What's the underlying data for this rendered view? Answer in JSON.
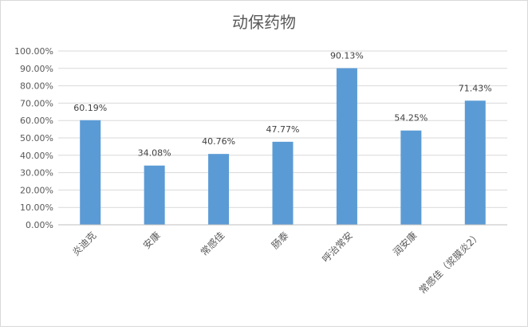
{
  "chart_data": {
    "type": "bar",
    "title": "动保药物",
    "categories": [
      "炎迪克",
      "安康",
      "常感佳",
      "肠泰",
      "呼治常安",
      "润安康",
      "常感佳（浆膜炎2）"
    ],
    "values": [
      60.19,
      34.08,
      40.76,
      47.77,
      90.13,
      54.25,
      71.43
    ],
    "value_labels": [
      "60.19%",
      "34.08%",
      "40.76%",
      "47.77%",
      "90.13%",
      "54.25%",
      "71.43%"
    ],
    "ylim": [
      0,
      100
    ],
    "yticks": [
      "0.00%",
      "10.00%",
      "20.00%",
      "30.00%",
      "40.00%",
      "50.00%",
      "60.00%",
      "70.00%",
      "80.00%",
      "90.00%",
      "100.00%"
    ],
    "grid": true,
    "legend": "none",
    "bar_color": "#5b9bd5"
  }
}
